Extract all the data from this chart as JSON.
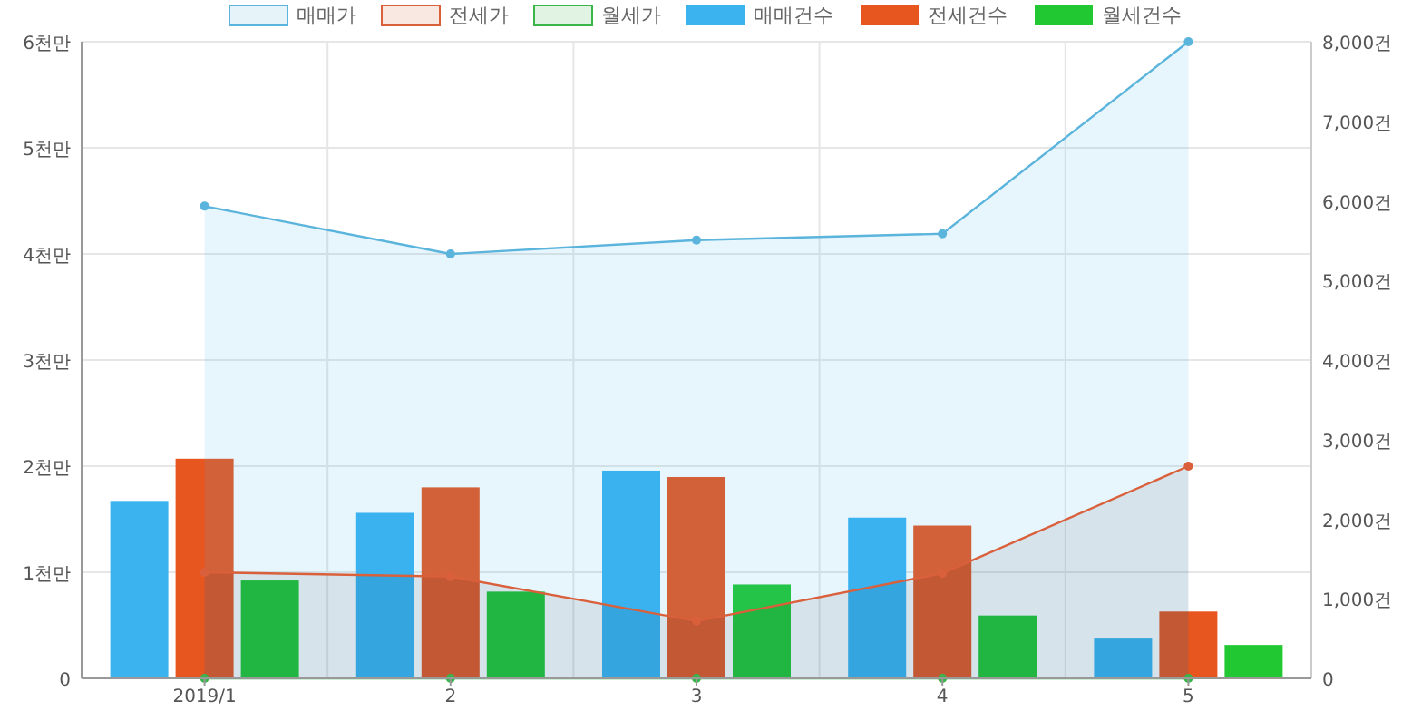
{
  "chart_data": {
    "type": "bar",
    "categories": [
      "2019/1",
      "2",
      "3",
      "4",
      "5"
    ],
    "series": [
      {
        "name": "매매가",
        "type": "area",
        "axis": "y",
        "color": "#5ab4dc",
        "values": [
          4.45,
          4.0,
          4.13,
          4.19,
          6.0
        ]
      },
      {
        "name": "전세가",
        "type": "area",
        "axis": "y",
        "color": "#d9603b",
        "values": [
          1.0,
          0.96,
          0.54,
          0.99,
          2.0
        ]
      },
      {
        "name": "월세가",
        "type": "line",
        "axis": "y",
        "color": "#39b54a",
        "values": [
          0,
          0,
          0,
          0,
          0
        ]
      },
      {
        "name": "매매건수",
        "axis": "y2",
        "color": "#3ab3ef",
        "values": [
          2230,
          2080,
          2610,
          2020,
          500
        ]
      },
      {
        "name": "전세건수",
        "axis": "y2",
        "color": "#e8561f",
        "values": [
          2760,
          2400,
          2530,
          1920,
          840
        ]
      },
      {
        "name": "월세건수",
        "axis": "y2",
        "color": "#22c832",
        "values": [
          1230,
          1090,
          1180,
          790,
          420
        ]
      }
    ],
    "ylim": [
      0,
      6
    ],
    "yticks": [
      0,
      {
        "value": 1,
        "label": "1천만"
      },
      {
        "value": 2,
        "label": "2천만"
      },
      {
        "value": 3,
        "label": "3천만"
      },
      {
        "value": 4,
        "label": "4천만"
      },
      {
        "value": 5,
        "label": "5천만"
      },
      {
        "value": 6,
        "label": "6천만"
      }
    ],
    "y2lim": [
      0,
      8000
    ],
    "y2ticks": [
      0,
      {
        "value": 1000,
        "label": "1,000건"
      },
      {
        "value": 2000,
        "label": "2,000건"
      },
      {
        "value": 3000,
        "label": "3,000건"
      },
      {
        "value": 4000,
        "label": "4,000건"
      },
      {
        "value": 5000,
        "label": "5,000건"
      },
      {
        "value": 6000,
        "label": "6,000건"
      },
      {
        "value": 7000,
        "label": "7,000건"
      },
      {
        "value": 8000,
        "label": "8,000건"
      }
    ],
    "grid": true,
    "legend": "top",
    "marker": "circle"
  }
}
